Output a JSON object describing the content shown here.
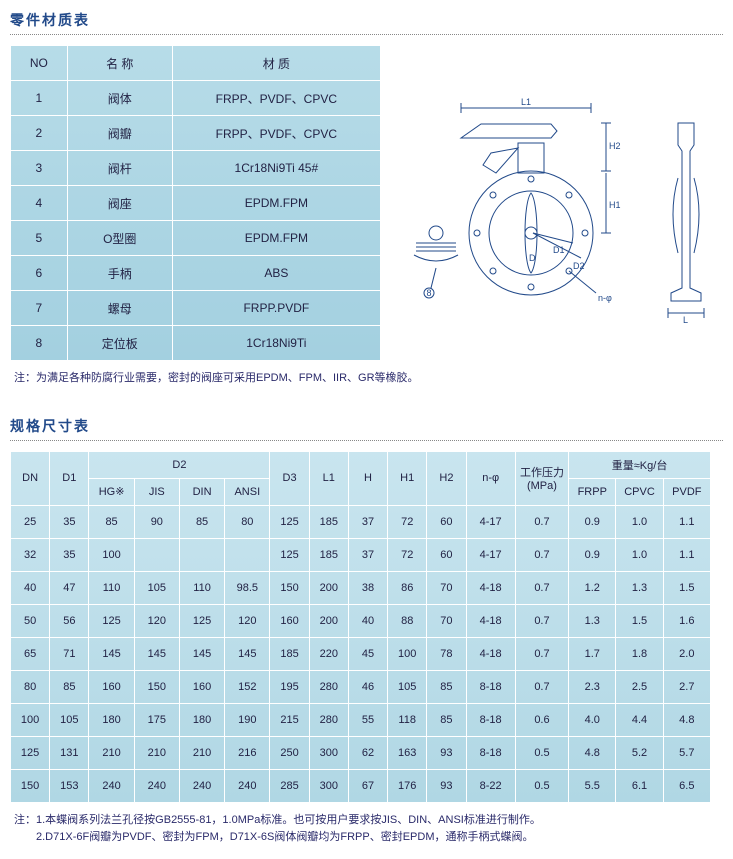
{
  "parts": {
    "title": "零件材质表",
    "headers": [
      "NO",
      "名 称",
      "材 质"
    ],
    "rows": [
      [
        "1",
        "阀体",
        "FRPP、PVDF、CPVC"
      ],
      [
        "2",
        "阀瓣",
        "FRPP、PVDF、CPVC"
      ],
      [
        "3",
        "阀杆",
        "1Cr18Ni9Ti 45#"
      ],
      [
        "4",
        "阀座",
        "EPDM.FPM"
      ],
      [
        "5",
        "O型圈",
        "EPDM.FPM"
      ],
      [
        "6",
        "手柄",
        "ABS"
      ],
      [
        "7",
        "螺母",
        "FRPP.PVDF"
      ],
      [
        "8",
        "定位板",
        "1Cr18Ni9Ti"
      ]
    ],
    "note": "注：为满足各种防腐行业需要，密封的阀座可采用EPDM、FPM、IIR、GR等橡胶。"
  },
  "diagram": {
    "labels": {
      "L1": "L1",
      "H1": "H1",
      "H2": "H2",
      "D": "D",
      "D1": "D1",
      "D2": "D2",
      "L": "L",
      "nphi": "n-φ",
      "callout": "8"
    }
  },
  "dims": {
    "title": "规格尺寸表",
    "headers_row1": {
      "DN": "DN",
      "D1": "D1",
      "D2": "D2",
      "D3": "D3",
      "L1": "L1",
      "H": "H",
      "H1": "H1",
      "H2": "H2",
      "nphi": "n-φ",
      "press": "工作压力 (MPa)",
      "weight": "重量≈Kg/台"
    },
    "headers_d2": [
      "HG※",
      "JIS",
      "DIN",
      "ANSI"
    ],
    "headers_wt": [
      "FRPP",
      "CPVC",
      "PVDF"
    ],
    "rows": [
      [
        "25",
        "35",
        "85",
        "90",
        "85",
        "80",
        "125",
        "185",
        "37",
        "72",
        "60",
        "4-17",
        "0.7",
        "0.9",
        "1.0",
        "1.1"
      ],
      [
        "32",
        "35",
        "100",
        "",
        "",
        "",
        "125",
        "185",
        "37",
        "72",
        "60",
        "4-17",
        "0.7",
        "0.9",
        "1.0",
        "1.1"
      ],
      [
        "40",
        "47",
        "110",
        "105",
        "110",
        "98.5",
        "150",
        "200",
        "38",
        "86",
        "70",
        "4-18",
        "0.7",
        "1.2",
        "1.3",
        "1.5"
      ],
      [
        "50",
        "56",
        "125",
        "120",
        "125",
        "120",
        "160",
        "200",
        "40",
        "88",
        "70",
        "4-18",
        "0.7",
        "1.3",
        "1.5",
        "1.6"
      ],
      [
        "65",
        "71",
        "145",
        "145",
        "145",
        "145",
        "185",
        "220",
        "45",
        "100",
        "78",
        "4-18",
        "0.7",
        "1.7",
        "1.8",
        "2.0"
      ],
      [
        "80",
        "85",
        "160",
        "150",
        "160",
        "152",
        "195",
        "280",
        "46",
        "105",
        "85",
        "8-18",
        "0.7",
        "2.3",
        "2.5",
        "2.7"
      ],
      [
        "100",
        "105",
        "180",
        "175",
        "180",
        "190",
        "215",
        "280",
        "55",
        "118",
        "85",
        "8-18",
        "0.6",
        "4.0",
        "4.4",
        "4.8"
      ],
      [
        "125",
        "131",
        "210",
        "210",
        "210",
        "216",
        "250",
        "300",
        "62",
        "163",
        "93",
        "8-18",
        "0.5",
        "4.8",
        "5.2",
        "5.7"
      ],
      [
        "150",
        "153",
        "240",
        "240",
        "240",
        "240",
        "285",
        "300",
        "67",
        "176",
        "93",
        "8-22",
        "0.5",
        "5.5",
        "6.1",
        "6.5"
      ]
    ],
    "note1": "注：1.本蝶阀系列法兰孔径按GB2555-81，1.0MPa标准。也可按用户要求按JIS、DIN、ANSI标准进行制作。",
    "note2": "　　2.D71X-6F阀瓣为PVDF、密封为FPM，D71X-6S阀体阀瓣均为FRPP、密封EPDM，通称手柄式蝶阀。"
  }
}
